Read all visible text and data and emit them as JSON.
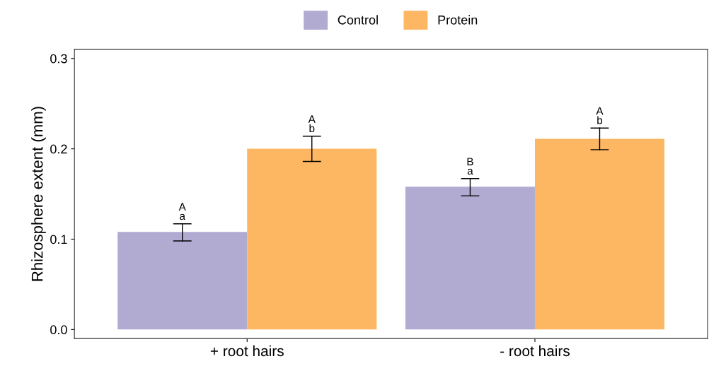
{
  "chart_data": {
    "type": "bar",
    "ylabel": "Rhizosphere extent (mm)",
    "categories": [
      "+ root hairs",
      "- root hairs"
    ],
    "series": [
      {
        "name": "Control",
        "color": "#b1abd2",
        "values": [
          0.108,
          0.158
        ],
        "errors": [
          [
            0.098,
            0.117
          ],
          [
            0.148,
            0.167
          ]
        ],
        "value_labels": [
          "A\na",
          "B\na"
        ]
      },
      {
        "name": "Protein",
        "color": "#fdb662",
        "values": [
          0.2,
          0.211
        ],
        "errors": [
          [
            0.186,
            0.214
          ],
          [
            0.199,
            0.223
          ]
        ],
        "value_labels": [
          "A\nb",
          "A\nb"
        ]
      }
    ],
    "ylim": [
      -0.01,
      0.31
    ],
    "yticks": [
      {
        "value": 0,
        "label": "0.0"
      },
      0.1,
      0.2,
      0.3
    ],
    "grid": false,
    "legend": "top"
  }
}
